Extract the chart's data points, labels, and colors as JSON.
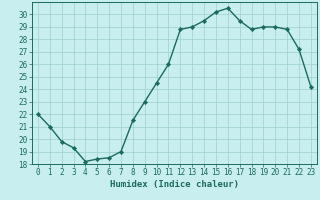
{
  "x": [
    0,
    1,
    2,
    3,
    4,
    5,
    6,
    7,
    8,
    9,
    10,
    11,
    12,
    13,
    14,
    15,
    16,
    17,
    18,
    19,
    20,
    21,
    22,
    23
  ],
  "y": [
    22,
    21,
    19.8,
    19.3,
    18.2,
    18.4,
    18.5,
    19,
    21.5,
    23,
    24.5,
    26,
    28.8,
    29,
    29.5,
    30.2,
    30.5,
    29.5,
    28.8,
    29,
    29,
    28.8,
    27.2,
    24.2
  ],
  "line_color": "#1a6b5e",
  "marker": "D",
  "marker_size": 2.2,
  "bg_color": "#c8eef0",
  "grid_color": "#9ecfcf",
  "xlabel": "Humidex (Indice chaleur)",
  "xlim": [
    -0.5,
    23.5
  ],
  "ylim": [
    18,
    31
  ],
  "yticks": [
    18,
    19,
    20,
    21,
    22,
    23,
    24,
    25,
    26,
    27,
    28,
    29,
    30
  ],
  "xticks": [
    0,
    1,
    2,
    3,
    4,
    5,
    6,
    7,
    8,
    9,
    10,
    11,
    12,
    13,
    14,
    15,
    16,
    17,
    18,
    19,
    20,
    21,
    22,
    23
  ],
  "xtick_labels": [
    "0",
    "1",
    "2",
    "3",
    "4",
    "5",
    "6",
    "7",
    "8",
    "9",
    "10",
    "11",
    "12",
    "13",
    "14",
    "15",
    "16",
    "17",
    "18",
    "19",
    "20",
    "21",
    "22",
    "23"
  ],
  "tick_fontsize": 5.5,
  "xlabel_fontsize": 6.5,
  "line_width": 1.0
}
